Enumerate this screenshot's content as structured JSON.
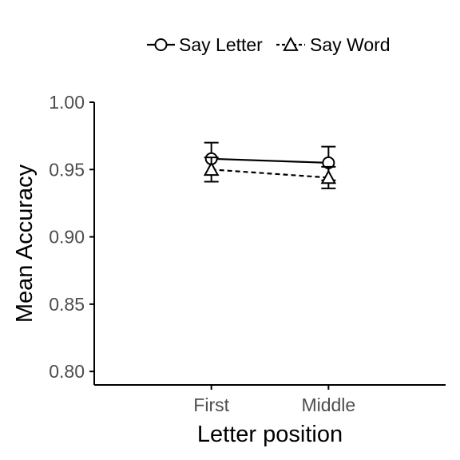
{
  "chart_data": {
    "type": "line",
    "xlabel": "Letter position",
    "ylabel": "Mean Accuracy",
    "categories": [
      "First",
      "Middle"
    ],
    "ylim": [
      0.79,
      1.0
    ],
    "yticks": [
      0.8,
      0.85,
      0.9,
      0.95,
      1.0
    ],
    "ytick_labels": [
      "0.80",
      "0.85",
      "0.90",
      "0.95",
      "1.00"
    ],
    "grid": false,
    "legend_position": "top",
    "series": [
      {
        "name": "Say Letter",
        "values": [
          0.958,
          0.955
        ],
        "error_low": [
          0.946,
          0.942
        ],
        "error_high": [
          0.97,
          0.967
        ],
        "marker": "circle",
        "line_style": "solid",
        "color": "#000000"
      },
      {
        "name": "Say Word",
        "values": [
          0.95,
          0.944
        ],
        "error_low": [
          0.941,
          0.936
        ],
        "error_high": [
          0.959,
          0.952
        ],
        "marker": "triangle",
        "line_style": "dashed",
        "color": "#000000"
      }
    ]
  }
}
